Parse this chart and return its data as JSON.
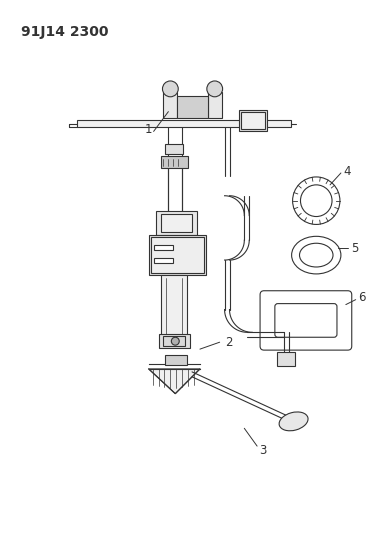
{
  "title_code": "91J14 2300",
  "bg_color": "#ffffff",
  "line_color": "#333333",
  "title_fontsize": 10,
  "label_fontsize": 8.5,
  "fig_width": 3.91,
  "fig_height": 5.33,
  "dpi": 100
}
